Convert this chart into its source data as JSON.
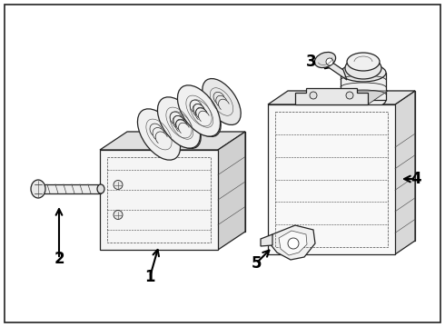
{
  "background_color": "#ffffff",
  "fig_width": 4.9,
  "fig_height": 3.6,
  "dpi": 100,
  "label_fontsize": 12,
  "label_fontweight": "bold",
  "lc": "#222222",
  "lc2": "#444444",
  "lw": 0.9,
  "border_lw": 1.2
}
